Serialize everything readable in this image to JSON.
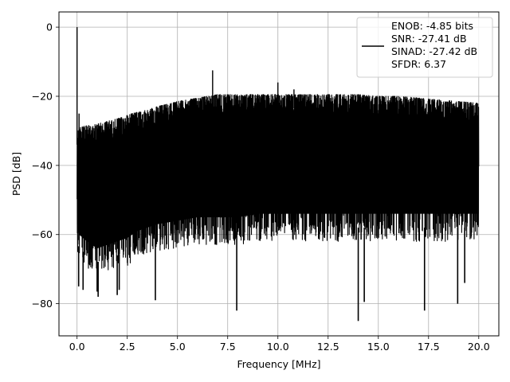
{
  "chart_data": {
    "type": "line",
    "xlabel": "Frequency [MHz]",
    "ylabel": "PSD [dB]",
    "xlim": [
      -0.9,
      21.0
    ],
    "ylim": [
      -89.3,
      4.4
    ],
    "xticks": [
      0.0,
      2.5,
      5.0,
      7.5,
      10.0,
      12.5,
      15.0,
      17.5,
      20.0
    ],
    "xtick_labels": [
      "0.0",
      "2.5",
      "5.0",
      "7.5",
      "10.0",
      "12.5",
      "15.0",
      "17.5",
      "20.0"
    ],
    "yticks": [
      0,
      -20,
      -40,
      -60,
      -80
    ],
    "ytick_labels": [
      "0",
      "−20",
      "−40",
      "−60",
      "−80"
    ],
    "grid": true,
    "legend_position": "top-right",
    "legend_entries": [
      "ENOB: -4.85 bits",
      "SNR: -27.41 dB",
      "SINAD: -27.42 dB",
      "SFDR: 6.37"
    ],
    "series": [
      {
        "color": "#000000",
        "envelope": {
          "x": [
            0.0,
            0.1,
            0.5,
            1.0,
            2.0,
            2.5,
            3.0,
            4.0,
            5.0,
            6.0,
            7.0,
            8.0,
            9.0,
            10.0,
            11.0,
            12.0,
            13.0,
            14.0,
            15.0,
            16.0,
            17.0,
            18.0,
            19.0,
            20.0
          ],
          "upper": [
            -30,
            -29,
            -28.5,
            -28,
            -26.5,
            -25.5,
            -24.5,
            -23,
            -21.5,
            -20.5,
            -19.5,
            -19.5,
            -19.5,
            -19.5,
            -19.5,
            -19.5,
            -19.5,
            -19.5,
            -20,
            -20,
            -20.5,
            -21,
            -21.5,
            -22
          ],
          "lower": [
            -65,
            -68,
            -70,
            -72,
            -70,
            -69,
            -67,
            -65,
            -64,
            -63,
            -63,
            -63,
            -62,
            -62,
            -62,
            -62,
            -62,
            -62,
            -62,
            -62,
            -62,
            -62,
            -62,
            -62
          ]
        },
        "peaks": [
          {
            "x": 0.0,
            "y": 0.0
          },
          {
            "x": 6.75,
            "y": -12.5
          },
          {
            "x": 10.0,
            "y": -16.0
          },
          {
            "x": 10.8,
            "y": -18.0
          },
          {
            "x": 0.1,
            "y": -25.0
          }
        ],
        "dips": [
          {
            "x": 0.08,
            "y": -75.0
          },
          {
            "x": 0.3,
            "y": -76.0
          },
          {
            "x": 1.0,
            "y": -76.5
          },
          {
            "x": 1.05,
            "y": -78.0
          },
          {
            "x": 2.0,
            "y": -77.5
          },
          {
            "x": 2.1,
            "y": -76.0
          },
          {
            "x": 3.9,
            "y": -79.0
          },
          {
            "x": 7.95,
            "y": -82.0
          },
          {
            "x": 14.0,
            "y": -85.0
          },
          {
            "x": 14.3,
            "y": -79.5
          },
          {
            "x": 17.3,
            "y": -82.0
          },
          {
            "x": 18.95,
            "y": -80.0
          },
          {
            "x": 19.3,
            "y": -74.0
          }
        ]
      }
    ]
  }
}
